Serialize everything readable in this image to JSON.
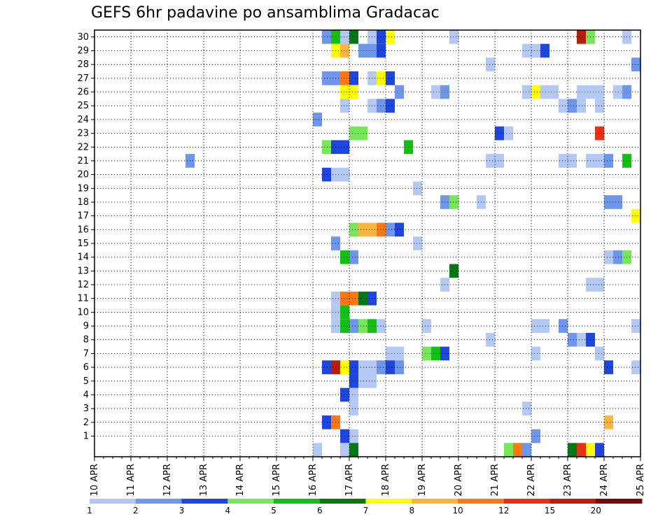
{
  "chart_data": {
    "type": "heatmap",
    "title": "GEFS 6hr padavine po ansamblima Gradacac",
    "x_tick_labels": [
      "10 APR",
      "11 APR",
      "12 APR",
      "13 APR",
      "14 APR",
      "15 APR",
      "16 APR",
      "17 APR",
      "18 APR",
      "19 APR",
      "20 APR",
      "21 APR",
      "22 APR",
      "23 APR",
      "24 APR",
      "25 APR"
    ],
    "y_tick_labels": [
      "1",
      "2",
      "3",
      "4",
      "5",
      "6",
      "7",
      "8",
      "9",
      "10",
      "11",
      "12",
      "13",
      "14",
      "15",
      "16",
      "17",
      "18",
      "19",
      "20",
      "21",
      "22",
      "23",
      "24",
      "25",
      "26",
      "27",
      "28",
      "29",
      "30"
    ],
    "x_range": [
      "10 APR",
      "25 APR"
    ],
    "ensemble_members": [
      0,
      30
    ],
    "time_step_hours": 6,
    "grid": true,
    "legend": {
      "placement": "bottom",
      "labels": [
        "1",
        "2",
        "3",
        "4",
        "5",
        "6",
        "7",
        "8",
        "10",
        "12",
        "15",
        "20"
      ],
      "colors": [
        "#b4c8f5",
        "#6e96eb",
        "#1e46dc",
        "#78e65a",
        "#14be14",
        "#007814",
        "#ffff00",
        "#ffb43c",
        "#ff7814",
        "#e63214",
        "#b41e0a",
        "#780a00"
      ]
    },
    "cells_format": "[member, day_index (0 = 10 APR), slot (0-3, 6-hourly), class (1-12 = legend colour index)]",
    "cells": [
      [
        30,
        6,
        1,
        2
      ],
      [
        30,
        6,
        2,
        5
      ],
      [
        30,
        6,
        3,
        1
      ],
      [
        30,
        7,
        0,
        6
      ],
      [
        30,
        7,
        2,
        1
      ],
      [
        30,
        7,
        3,
        3
      ],
      [
        30,
        8,
        0,
        7
      ],
      [
        30,
        9,
        3,
        1
      ],
      [
        30,
        13,
        1,
        11
      ],
      [
        30,
        13,
        2,
        4
      ],
      [
        30,
        14,
        2,
        1
      ],
      [
        29,
        6,
        2,
        7
      ],
      [
        29,
        6,
        3,
        8
      ],
      [
        29,
        7,
        1,
        2
      ],
      [
        29,
        7,
        2,
        2
      ],
      [
        29,
        7,
        3,
        3
      ],
      [
        29,
        11,
        3,
        1
      ],
      [
        29,
        12,
        0,
        1
      ],
      [
        29,
        12,
        1,
        3
      ],
      [
        28,
        10,
        3,
        1
      ],
      [
        28,
        14,
        3,
        2
      ],
      [
        27,
        6,
        1,
        2
      ],
      [
        27,
        6,
        2,
        2
      ],
      [
        27,
        6,
        3,
        9
      ],
      [
        27,
        7,
        0,
        3
      ],
      [
        27,
        7,
        2,
        1
      ],
      [
        27,
        7,
        3,
        7
      ],
      [
        27,
        8,
        0,
        3
      ],
      [
        26,
        6,
        3,
        7
      ],
      [
        26,
        7,
        0,
        7
      ],
      [
        26,
        8,
        1,
        2
      ],
      [
        26,
        9,
        1,
        1
      ],
      [
        26,
        9,
        2,
        2
      ],
      [
        26,
        11,
        3,
        1
      ],
      [
        26,
        12,
        0,
        7
      ],
      [
        26,
        12,
        1,
        1
      ],
      [
        26,
        12,
        2,
        1
      ],
      [
        26,
        13,
        1,
        1
      ],
      [
        26,
        13,
        2,
        1
      ],
      [
        26,
        13,
        3,
        1
      ],
      [
        26,
        14,
        1,
        1
      ],
      [
        26,
        14,
        2,
        2
      ],
      [
        25,
        6,
        3,
        1
      ],
      [
        25,
        7,
        2,
        1
      ],
      [
        25,
        7,
        3,
        2
      ],
      [
        25,
        8,
        0,
        3
      ],
      [
        25,
        12,
        3,
        1
      ],
      [
        25,
        13,
        0,
        2
      ],
      [
        25,
        13,
        1,
        1
      ],
      [
        25,
        13,
        3,
        1
      ],
      [
        24,
        6,
        0,
        2
      ],
      [
        23,
        7,
        0,
        4
      ],
      [
        23,
        7,
        1,
        4
      ],
      [
        23,
        11,
        0,
        3
      ],
      [
        23,
        11,
        1,
        1
      ],
      [
        23,
        13,
        3,
        10
      ],
      [
        22,
        6,
        1,
        4
      ],
      [
        22,
        6,
        2,
        3
      ],
      [
        22,
        6,
        3,
        3
      ],
      [
        22,
        8,
        2,
        5
      ],
      [
        21,
        2,
        2,
        2
      ],
      [
        21,
        10,
        3,
        1
      ],
      [
        21,
        11,
        0,
        1
      ],
      [
        21,
        12,
        3,
        1
      ],
      [
        21,
        13,
        0,
        1
      ],
      [
        21,
        13,
        2,
        1
      ],
      [
        21,
        13,
        3,
        1
      ],
      [
        21,
        14,
        0,
        2
      ],
      [
        21,
        14,
        2,
        5
      ],
      [
        20,
        6,
        1,
        3
      ],
      [
        20,
        6,
        2,
        1
      ],
      [
        20,
        6,
        3,
        1
      ],
      [
        19,
        8,
        3,
        1
      ],
      [
        18,
        9,
        2,
        2
      ],
      [
        18,
        9,
        3,
        4
      ],
      [
        18,
        10,
        2,
        1
      ],
      [
        18,
        14,
        0,
        2
      ],
      [
        18,
        14,
        1,
        2
      ],
      [
        17,
        14,
        3,
        7
      ],
      [
        16,
        7,
        0,
        4
      ],
      [
        16,
        7,
        1,
        8
      ],
      [
        16,
        7,
        2,
        8
      ],
      [
        16,
        7,
        3,
        9
      ],
      [
        16,
        8,
        0,
        2
      ],
      [
        16,
        8,
        1,
        3
      ],
      [
        15,
        6,
        2,
        2
      ],
      [
        15,
        8,
        3,
        1
      ],
      [
        14,
        6,
        3,
        5
      ],
      [
        14,
        7,
        0,
        2
      ],
      [
        14,
        14,
        0,
        1
      ],
      [
        14,
        14,
        1,
        2
      ],
      [
        14,
        14,
        2,
        4
      ],
      [
        13,
        9,
        3,
        6
      ],
      [
        12,
        9,
        2,
        1
      ],
      [
        12,
        13,
        2,
        1
      ],
      [
        12,
        13,
        3,
        1
      ],
      [
        11,
        6,
        2,
        1
      ],
      [
        11,
        6,
        3,
        9
      ],
      [
        11,
        7,
        0,
        9
      ],
      [
        11,
        7,
        1,
        6
      ],
      [
        11,
        7,
        2,
        3
      ],
      [
        10,
        6,
        2,
        1
      ],
      [
        10,
        6,
        3,
        5
      ],
      [
        9,
        6,
        2,
        1
      ],
      [
        9,
        6,
        3,
        5
      ],
      [
        9,
        7,
        0,
        2
      ],
      [
        9,
        7,
        1,
        4
      ],
      [
        9,
        7,
        2,
        5
      ],
      [
        9,
        7,
        3,
        1
      ],
      [
        9,
        9,
        0,
        1
      ],
      [
        9,
        12,
        0,
        1
      ],
      [
        9,
        12,
        1,
        1
      ],
      [
        9,
        12,
        3,
        2
      ],
      [
        9,
        14,
        3,
        1
      ],
      [
        8,
        10,
        3,
        1
      ],
      [
        8,
        13,
        0,
        2
      ],
      [
        8,
        13,
        1,
        1
      ],
      [
        8,
        13,
        2,
        3
      ],
      [
        7,
        8,
        0,
        1
      ],
      [
        7,
        8,
        1,
        1
      ],
      [
        7,
        9,
        0,
        4
      ],
      [
        7,
        9,
        1,
        5
      ],
      [
        7,
        9,
        2,
        3
      ],
      [
        7,
        12,
        0,
        1
      ],
      [
        7,
        13,
        3,
        1
      ],
      [
        6,
        6,
        1,
        3
      ],
      [
        6,
        6,
        2,
        11
      ],
      [
        6,
        6,
        3,
        7
      ],
      [
        6,
        7,
        0,
        3
      ],
      [
        6,
        7,
        1,
        1
      ],
      [
        6,
        7,
        2,
        1
      ],
      [
        6,
        7,
        3,
        2
      ],
      [
        6,
        8,
        0,
        3
      ],
      [
        6,
        8,
        1,
        2
      ],
      [
        6,
        14,
        0,
        3
      ],
      [
        6,
        14,
        3,
        1
      ],
      [
        5,
        7,
        0,
        3
      ],
      [
        5,
        7,
        1,
        1
      ],
      [
        5,
        7,
        2,
        1
      ],
      [
        4,
        6,
        3,
        3
      ],
      [
        4,
        7,
        0,
        1
      ],
      [
        3,
        7,
        0,
        1
      ],
      [
        3,
        11,
        3,
        1
      ],
      [
        2,
        6,
        1,
        3
      ],
      [
        2,
        6,
        2,
        9
      ],
      [
        2,
        14,
        0,
        8
      ],
      [
        1,
        6,
        3,
        3
      ],
      [
        1,
        7,
        0,
        1
      ],
      [
        1,
        12,
        0,
        2
      ],
      [
        0,
        6,
        0,
        1
      ],
      [
        0,
        6,
        3,
        1
      ],
      [
        0,
        7,
        0,
        6
      ],
      [
        0,
        11,
        1,
        4
      ],
      [
        0,
        11,
        2,
        9
      ],
      [
        0,
        11,
        3,
        2
      ],
      [
        0,
        13,
        0,
        6
      ],
      [
        0,
        13,
        1,
        10
      ],
      [
        0,
        13,
        2,
        7
      ],
      [
        0,
        13,
        3,
        3
      ]
    ]
  }
}
